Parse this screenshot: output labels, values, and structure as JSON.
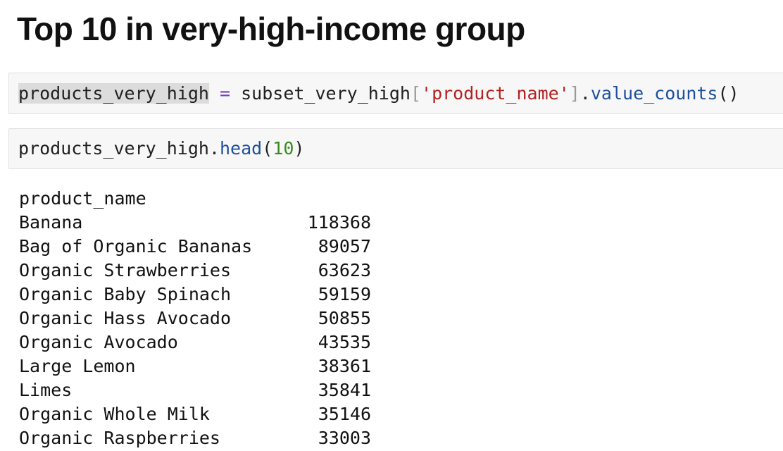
{
  "heading": "Top 10 in very-high-income group",
  "cell1": {
    "var": "products_very_high",
    "op": "=",
    "obj": "subset_very_high",
    "open_bracket": "[",
    "key": "'product_name'",
    "close_bracket": "]",
    "dot": ".",
    "method": "value_counts",
    "parens": "()"
  },
  "cell2": {
    "obj": "products_very_high",
    "dot": ".",
    "method": "head",
    "open_paren": "(",
    "arg": "10",
    "close_paren": ")"
  },
  "output": {
    "index_name": "product_name",
    "rows": [
      {
        "name": "Banana",
        "count": "118368"
      },
      {
        "name": "Bag of Organic Bananas",
        "count": "89057"
      },
      {
        "name": "Organic Strawberries",
        "count": "63623"
      },
      {
        "name": "Organic Baby Spinach",
        "count": "59159"
      },
      {
        "name": "Organic Hass Avocado",
        "count": "50855"
      },
      {
        "name": "Organic Avocado",
        "count": "43535"
      },
      {
        "name": "Large Lemon",
        "count": "38361"
      },
      {
        "name": "Limes",
        "count": "35841"
      },
      {
        "name": "Organic Whole Milk",
        "count": "35146"
      },
      {
        "name": "Organic Raspberries",
        "count": "33003"
      }
    ]
  }
}
